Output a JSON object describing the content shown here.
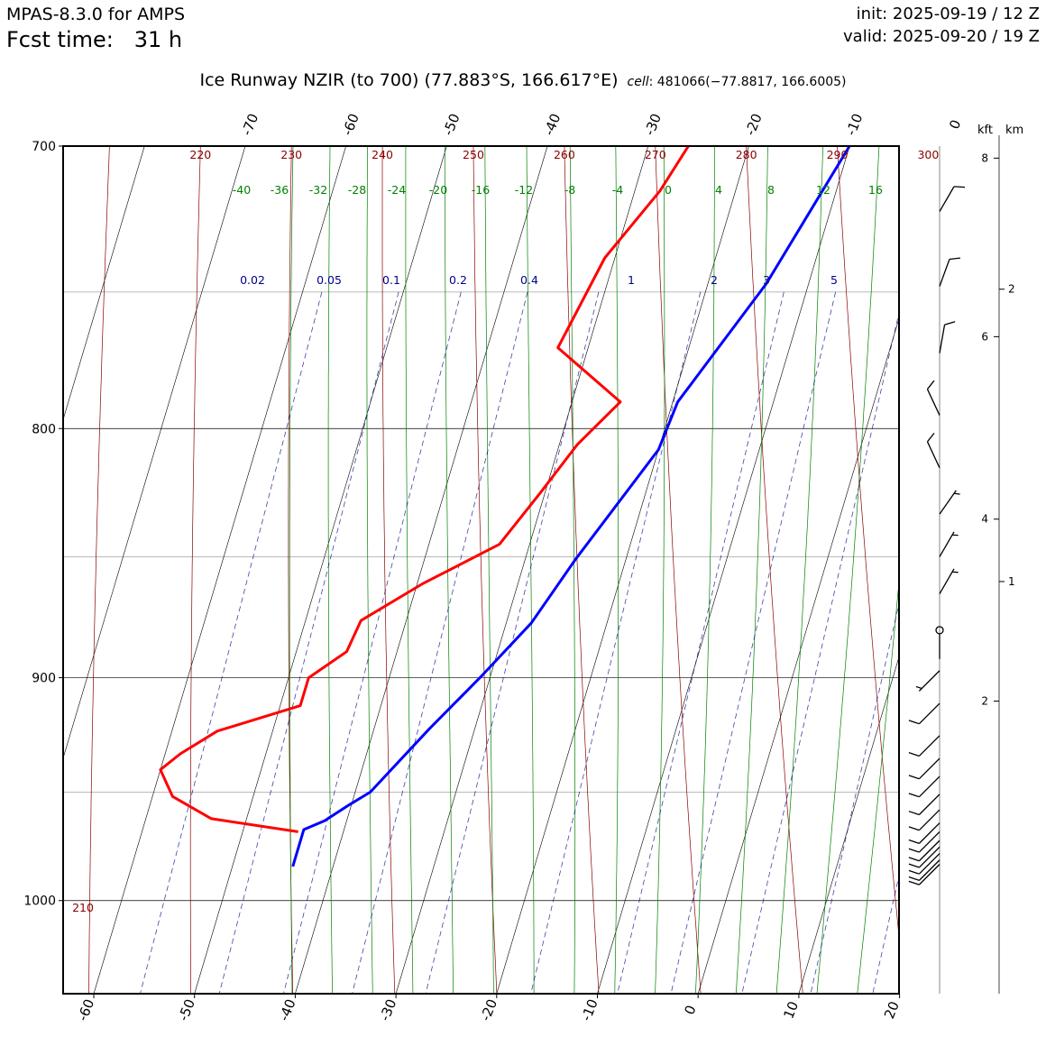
{
  "header": {
    "model": "MPAS-8.3.0 for AMPS",
    "fcst_label": "Fcst time:",
    "fcst_value": "31 h",
    "init": "init: 2025-09-19 / 12 Z",
    "valid": "valid: 2025-09-20 / 19 Z"
  },
  "title": {
    "main": "Ice Runway NZIR (to 700)  (77.883°S, 166.617°E)",
    "cell_label": "cell",
    "cell_value": ": 481066(−77.8817, 166.6005)"
  },
  "chart_data": {
    "type": "line",
    "subtype": "skew-T log-P",
    "y_axis": {
      "label": "",
      "scale": "log",
      "range": [
        1045,
        700
      ],
      "ticks": [
        700,
        800,
        900,
        1000
      ]
    },
    "x_axis": {
      "label": "",
      "units": "°C",
      "range": [
        -63,
        20
      ],
      "ticks": [
        -60,
        -50,
        -40,
        -30,
        -20,
        -10,
        0,
        10,
        20
      ],
      "top_ticks": [
        -70,
        -60,
        -50,
        -40,
        -30,
        -20,
        -10,
        0
      ]
    },
    "isobars_light": [
      750,
      850,
      950
    ],
    "dry_adiabats": {
      "color": "#8b0000",
      "labels": [
        220,
        230,
        240,
        250,
        260,
        270,
        280,
        290,
        300
      ],
      "bottom_label": 210
    },
    "moist_adiabats": {
      "color": "#008000",
      "labels": [
        -40,
        -36,
        -32,
        -28,
        -24,
        -20,
        -16,
        -12,
        -8,
        -4,
        0,
        4,
        8,
        12,
        16
      ]
    },
    "mixing_ratio": {
      "color": "#00008b",
      "labels": [
        "0.02",
        "0.05",
        "0.1",
        "0.2",
        "0.4",
        "1",
        "2",
        "3",
        "5"
      ]
    },
    "series": [
      {
        "name": "",
        "color": "#ff0000",
        "points": [
          [
            700,
            -26.0
          ],
          [
            715,
            -27.5
          ],
          [
            738,
            -31.0
          ],
          [
            770,
            -33.0
          ],
          [
            790,
            -25.2
          ],
          [
            806,
            -28.2
          ],
          [
            825,
            -30.5
          ],
          [
            845,
            -33.0
          ],
          [
            861,
            -39.5
          ],
          [
            876,
            -44.5
          ],
          [
            889,
            -45.0
          ],
          [
            900,
            -48.0
          ],
          [
            912,
            -48.0
          ],
          [
            923,
            -55.5
          ],
          [
            933,
            -58.5
          ],
          [
            940,
            -60.0
          ],
          [
            952,
            -58.0
          ],
          [
            962,
            -53.5
          ],
          [
            968,
            -44.5
          ]
        ]
      },
      {
        "name": "",
        "color": "#0000ff",
        "points": [
          [
            700,
            -10.0
          ],
          [
            747,
            -14.2
          ],
          [
            790,
            -19.5
          ],
          [
            808,
            -20.0
          ],
          [
            851,
            -25.0
          ],
          [
            877,
            -27.5
          ],
          [
            900,
            -31.0
          ],
          [
            922,
            -34.5
          ],
          [
            950,
            -38.5
          ],
          [
            956,
            -40.3
          ],
          [
            963,
            -42.2
          ],
          [
            967,
            -44.0
          ],
          [
            984,
            -44.0
          ]
        ]
      }
    ],
    "right_axis": {
      "kft_label": "kft",
      "km_label": "km",
      "kft_ticks": [
        {
          "p": 704,
          "label": "8"
        },
        {
          "p": 766,
          "label": "6"
        },
        {
          "p": 835,
          "label": "4"
        },
        {
          "p": 910,
          "label": "2"
        }
      ],
      "km_ticks": [
        {
          "p": 749,
          "label": "2"
        },
        {
          "p": 860,
          "label": "1"
        }
      ]
    },
    "wind_barbs": [
      {
        "p": 722,
        "dir": 30,
        "speed": 10
      },
      {
        "p": 748,
        "dir": 20,
        "speed": 10
      },
      {
        "p": 772,
        "dir": 10,
        "speed": 10
      },
      {
        "p": 795,
        "dir": 335,
        "speed": 10
      },
      {
        "p": 815,
        "dir": 335,
        "speed": 10
      },
      {
        "p": 833,
        "dir": 35,
        "speed": 5
      },
      {
        "p": 850,
        "dir": 30,
        "speed": 5
      },
      {
        "p": 865,
        "dir": 30,
        "speed": 5
      },
      {
        "p": 880,
        "dir": 0,
        "speed": 0
      },
      {
        "p": 897,
        "dir": 225,
        "speed": 5
      },
      {
        "p": 911,
        "dir": 225,
        "speed": 10
      },
      {
        "p": 925,
        "dir": 225,
        "speed": 10
      },
      {
        "p": 935,
        "dir": 225,
        "speed": 10
      },
      {
        "p": 943,
        "dir": 225,
        "speed": 10
      },
      {
        "p": 951,
        "dir": 225,
        "speed": 10
      },
      {
        "p": 958,
        "dir": 225,
        "speed": 10
      },
      {
        "p": 964,
        "dir": 225,
        "speed": 10
      },
      {
        "p": 968,
        "dir": 225,
        "speed": 10
      },
      {
        "p": 972,
        "dir": 225,
        "speed": 10
      },
      {
        "p": 975,
        "dir": 225,
        "speed": 10
      },
      {
        "p": 978,
        "dir": 225,
        "speed": 10
      },
      {
        "p": 981,
        "dir": 225,
        "speed": 10
      },
      {
        "p": 983,
        "dir": 225,
        "speed": 10
      }
    ]
  }
}
